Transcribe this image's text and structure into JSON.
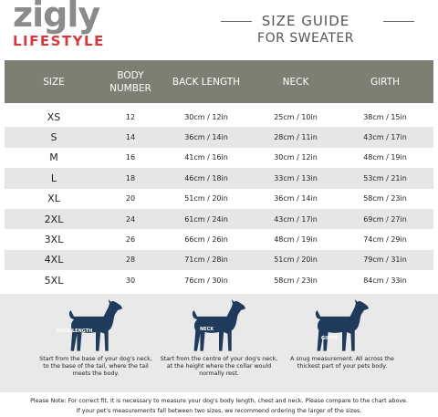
{
  "header": {
    "logo": "zigly",
    "tagline": "LIFESTYLE",
    "title": "SIZE GUIDE",
    "subtitle": "FOR SWEATER"
  },
  "table": {
    "columns": [
      "SIZE",
      "BODY NUMBER",
      "BACK LENGTH",
      "NECK",
      "GIRTH"
    ],
    "rows": [
      [
        "XS",
        12,
        "30cm / 12in",
        "25cm / 10in",
        "38cm / 15in"
      ],
      [
        "S",
        14,
        "36cm / 14in",
        "28cm / 11in",
        "43cm / 17in"
      ],
      [
        "M",
        16,
        "41cm / 16in",
        "30cm / 12in",
        "48cm / 19in"
      ],
      [
        "L",
        18,
        "46cm / 18in",
        "33cm / 13in",
        "53cm / 21in"
      ],
      [
        "XL",
        20,
        "51cm / 20in",
        "36cm / 14in",
        "58cm / 23in"
      ],
      [
        "2XL",
        24,
        "61cm / 24in",
        "43cm / 17in",
        "69cm / 27in"
      ],
      [
        "3XL",
        26,
        "66cm / 26in",
        "48cm / 19in",
        "74cm / 29in"
      ],
      [
        "4XL",
        28,
        "71cm / 28in",
        "51cm / 20in",
        "79cm / 31in"
      ],
      [
        "5XL",
        30,
        "76cm / 30in",
        "58cm / 23in",
        "84cm / 33in"
      ]
    ]
  },
  "guides": [
    {
      "label": "BACK LENGTH",
      "caption": "Start from the base of your dog's neck, to the base of the tail, where the tail meets the body."
    },
    {
      "label": "NECK",
      "caption": "Start from the centre of your dog's neck, at the height where the collar would normally rest."
    },
    {
      "label": "GIRTH",
      "caption": "A snug measurement. All across the thickest part of your pets body."
    }
  ],
  "notes": [
    "Please Note: For correct fit, It is necessary to measure your dog's body length, chest and neck. Please compare to the chart above.",
    "If your pet's measurements fall between two sizes, we recommend ordering the larger of the sizes."
  ]
}
